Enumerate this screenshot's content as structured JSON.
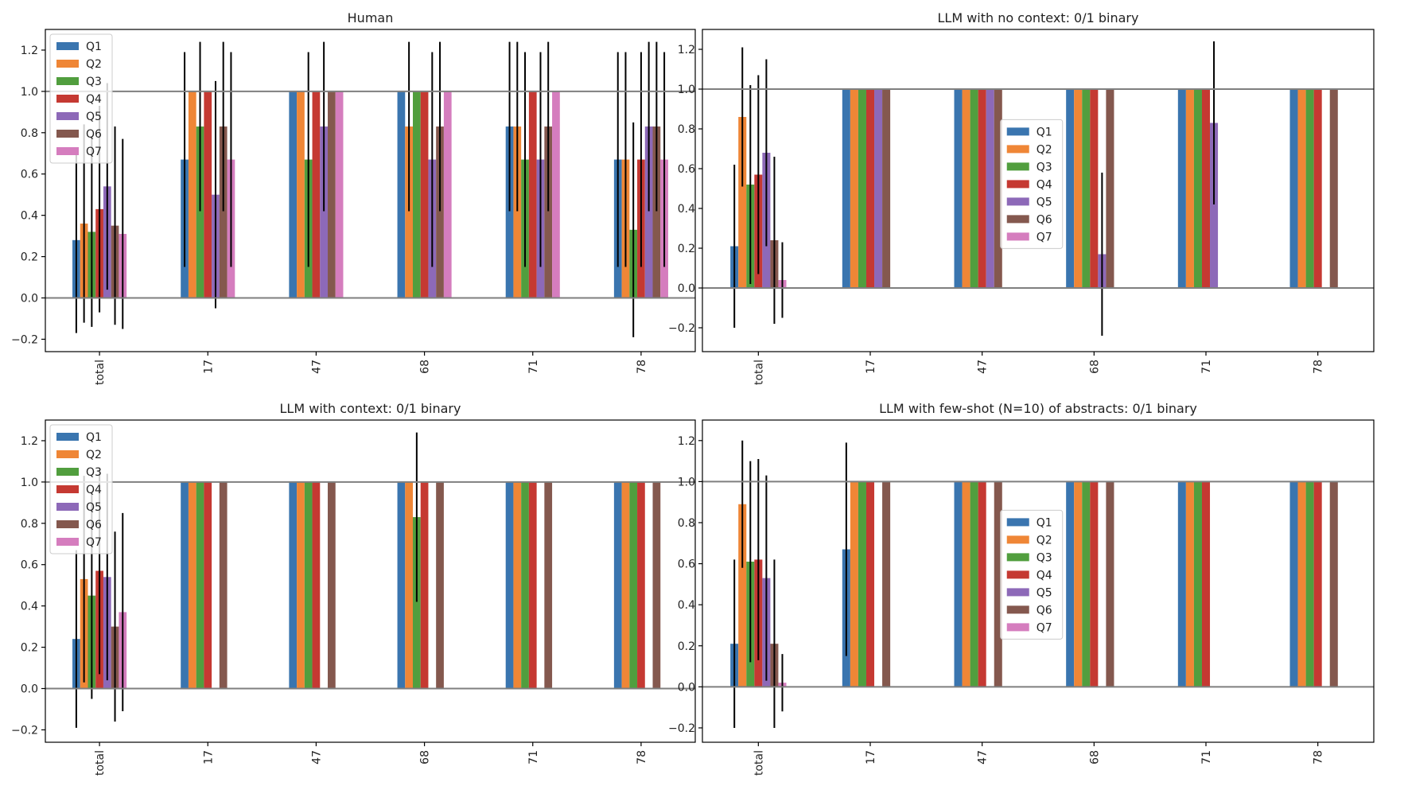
{
  "colors": {
    "Q1": "#3a75af",
    "Q2": "#ef8636",
    "Q3": "#519e3e",
    "Q4": "#c53932",
    "Q5": "#8d69b8",
    "Q6": "#84584e",
    "Q7": "#d57dbe"
  },
  "chart_data": [
    {
      "type": "bar",
      "title": "Human",
      "categories": [
        "total",
        "17",
        "47",
        "68",
        "71",
        "78"
      ],
      "ylim": [
        -0.26,
        1.3
      ],
      "yticks": [
        -0.2,
        0.0,
        0.2,
        0.4,
        0.6,
        0.8,
        1.0,
        1.2
      ],
      "ytick_labels": [
        "−0.2",
        "0.0",
        "0.2",
        "0.4",
        "0.6",
        "0.8",
        "1.0",
        "1.2"
      ],
      "legend": {
        "position": "top-left",
        "labels": [
          "Q1",
          "Q2",
          "Q3",
          "Q4",
          "Q5",
          "Q6",
          "Q7"
        ]
      },
      "series": [
        {
          "name": "Q1",
          "values": [
            0.28,
            0.67,
            1.0,
            1.0,
            0.83,
            0.67
          ],
          "err": [
            0.45,
            0.52,
            null,
            null,
            0.41,
            0.52
          ]
        },
        {
          "name": "Q2",
          "values": [
            0.36,
            1.0,
            1.0,
            0.83,
            0.83,
            0.67
          ],
          "err": [
            0.48,
            null,
            null,
            0.41,
            0.41,
            0.52
          ]
        },
        {
          "name": "Q3",
          "values": [
            0.32,
            0.83,
            0.67,
            1.0,
            0.67,
            0.33
          ],
          "err": [
            0.46,
            0.41,
            0.52,
            null,
            0.52,
            0.52
          ]
        },
        {
          "name": "Q4",
          "values": [
            0.43,
            1.0,
            1.0,
            1.0,
            1.0,
            0.67
          ],
          "err": [
            0.5,
            null,
            null,
            null,
            null,
            0.52
          ]
        },
        {
          "name": "Q5",
          "values": [
            0.54,
            0.5,
            0.83,
            0.67,
            0.67,
            0.83
          ],
          "err": [
            0.5,
            0.55,
            0.41,
            0.52,
            0.52,
            0.41
          ]
        },
        {
          "name": "Q6",
          "values": [
            0.35,
            0.83,
            1.0,
            0.83,
            0.83,
            0.83
          ],
          "err": [
            0.48,
            0.41,
            null,
            0.41,
            0.41,
            0.41
          ]
        },
        {
          "name": "Q7",
          "values": [
            0.31,
            0.67,
            1.0,
            1.0,
            1.0,
            0.67
          ],
          "err": [
            0.46,
            0.52,
            null,
            null,
            null,
            0.52
          ]
        }
      ]
    },
    {
      "type": "bar",
      "title": "LLM with no context: 0/1 binary",
      "categories": [
        "total",
        "17",
        "47",
        "68",
        "71",
        "78"
      ],
      "ylim": [
        -0.32,
        1.3
      ],
      "yticks": [
        -0.2,
        0.0,
        0.2,
        0.4,
        0.6,
        0.8,
        1.0,
        1.2
      ],
      "ytick_labels": [
        "−0.2",
        "0.0",
        "0.2",
        "0.4",
        "0.6",
        "0.8",
        "1.0",
        "1.2"
      ],
      "legend": {
        "position": "center",
        "labels": [
          "Q1",
          "Q2",
          "Q3",
          "Q4",
          "Q5",
          "Q6",
          "Q7"
        ]
      },
      "series": [
        {
          "name": "Q1",
          "values": [
            0.21,
            1.0,
            1.0,
            1.0,
            1.0,
            1.0
          ],
          "err": [
            0.41,
            null,
            null,
            null,
            null,
            null
          ]
        },
        {
          "name": "Q2",
          "values": [
            0.86,
            1.0,
            1.0,
            1.0,
            1.0,
            1.0
          ],
          "err": [
            0.35,
            null,
            null,
            null,
            null,
            null
          ]
        },
        {
          "name": "Q3",
          "values": [
            0.52,
            1.0,
            1.0,
            1.0,
            1.0,
            1.0
          ],
          "err": [
            0.5,
            null,
            null,
            null,
            null,
            null
          ]
        },
        {
          "name": "Q4",
          "values": [
            0.57,
            1.0,
            1.0,
            1.0,
            1.0,
            1.0
          ],
          "err": [
            0.5,
            null,
            null,
            null,
            null,
            null
          ]
        },
        {
          "name": "Q5",
          "values": [
            0.68,
            1.0,
            1.0,
            0.17,
            0.83,
            null
          ],
          "err": [
            0.47,
            null,
            null,
            0.41,
            0.41,
            null
          ]
        },
        {
          "name": "Q6",
          "values": [
            0.24,
            1.0,
            1.0,
            1.0,
            null,
            1.0
          ],
          "err": [
            0.42,
            null,
            null,
            null,
            null,
            null
          ]
        },
        {
          "name": "Q7",
          "values": [
            0.04,
            null,
            null,
            null,
            null,
            null
          ],
          "err": [
            0.19,
            null,
            null,
            null,
            null,
            null
          ]
        }
      ]
    },
    {
      "type": "bar",
      "title": "LLM with context: 0/1 binary",
      "categories": [
        "total",
        "17",
        "47",
        "68",
        "71",
        "78"
      ],
      "ylim": [
        -0.26,
        1.3
      ],
      "yticks": [
        -0.2,
        0.0,
        0.2,
        0.4,
        0.6,
        0.8,
        1.0,
        1.2
      ],
      "ytick_labels": [
        "−0.2",
        "0.0",
        "0.2",
        "0.4",
        "0.6",
        "0.8",
        "1.0",
        "1.2"
      ],
      "legend": {
        "position": "top-left",
        "labels": [
          "Q1",
          "Q2",
          "Q3",
          "Q4",
          "Q5",
          "Q6",
          "Q7"
        ]
      },
      "series": [
        {
          "name": "Q1",
          "values": [
            0.24,
            1.0,
            1.0,
            1.0,
            1.0,
            1.0
          ],
          "err": [
            0.43,
            null,
            null,
            null,
            null,
            null
          ]
        },
        {
          "name": "Q2",
          "values": [
            0.53,
            1.0,
            1.0,
            1.0,
            1.0,
            1.0
          ],
          "err": [
            0.5,
            null,
            null,
            null,
            null,
            null
          ]
        },
        {
          "name": "Q3",
          "values": [
            0.45,
            1.0,
            1.0,
            0.83,
            1.0,
            1.0
          ],
          "err": [
            0.5,
            null,
            null,
            0.41,
            null,
            null
          ]
        },
        {
          "name": "Q4",
          "values": [
            0.57,
            1.0,
            1.0,
            1.0,
            1.0,
            1.0
          ],
          "err": [
            0.5,
            null,
            null,
            null,
            null,
            null
          ]
        },
        {
          "name": "Q5",
          "values": [
            0.54,
            null,
            null,
            null,
            null,
            null
          ],
          "err": [
            0.5,
            null,
            null,
            null,
            null,
            null
          ]
        },
        {
          "name": "Q6",
          "values": [
            0.3,
            1.0,
            1.0,
            1.0,
            1.0,
            1.0
          ],
          "err": [
            0.46,
            null,
            null,
            null,
            null,
            null
          ]
        },
        {
          "name": "Q7",
          "values": [
            0.37,
            null,
            null,
            null,
            null,
            null
          ],
          "err": [
            0.48,
            null,
            null,
            null,
            null,
            null
          ]
        }
      ]
    },
    {
      "type": "bar",
      "title": "LLM with few-shot (N=10) of abstracts: 0/1 binary",
      "categories": [
        "total",
        "17",
        "47",
        "68",
        "71",
        "78"
      ],
      "ylim": [
        -0.27,
        1.3
      ],
      "yticks": [
        -0.2,
        0.0,
        0.2,
        0.4,
        0.6,
        0.8,
        1.0,
        1.2
      ],
      "ytick_labels": [
        "−0.2",
        "0.0",
        "0.2",
        "0.4",
        "0.6",
        "0.8",
        "1.0",
        "1.2"
      ],
      "legend": {
        "position": "center",
        "labels": [
          "Q1",
          "Q2",
          "Q3",
          "Q4",
          "Q5",
          "Q6",
          "Q7"
        ]
      },
      "series": [
        {
          "name": "Q1",
          "values": [
            0.21,
            0.67,
            1.0,
            1.0,
            1.0,
            1.0
          ],
          "err": [
            0.41,
            0.52,
            null,
            null,
            null,
            null
          ]
        },
        {
          "name": "Q2",
          "values": [
            0.89,
            1.0,
            1.0,
            1.0,
            1.0,
            1.0
          ],
          "err": [
            0.31,
            null,
            null,
            null,
            null,
            null
          ]
        },
        {
          "name": "Q3",
          "values": [
            0.61,
            1.0,
            1.0,
            1.0,
            1.0,
            1.0
          ],
          "err": [
            0.49,
            null,
            null,
            null,
            null,
            null
          ]
        },
        {
          "name": "Q4",
          "values": [
            0.62,
            1.0,
            1.0,
            1.0,
            1.0,
            1.0
          ],
          "err": [
            0.49,
            null,
            null,
            null,
            null,
            null
          ]
        },
        {
          "name": "Q5",
          "values": [
            0.53,
            null,
            null,
            null,
            null,
            null
          ],
          "err": [
            0.5,
            null,
            null,
            null,
            null,
            null
          ]
        },
        {
          "name": "Q6",
          "values": [
            0.21,
            1.0,
            1.0,
            1.0,
            null,
            1.0
          ],
          "err": [
            0.41,
            null,
            null,
            null,
            null,
            null
          ]
        },
        {
          "name": "Q7",
          "values": [
            0.02,
            null,
            null,
            null,
            null,
            null
          ],
          "err": [
            0.14,
            null,
            null,
            null,
            null,
            null
          ]
        }
      ]
    }
  ]
}
